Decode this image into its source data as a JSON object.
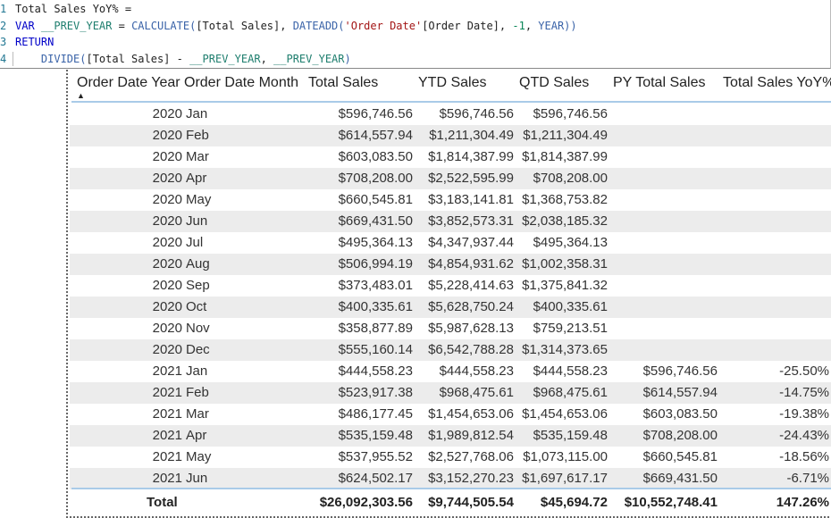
{
  "editor": {
    "lines": [
      {
        "n": "1",
        "parts": [
          [
            "txt",
            "Total Sales YoY% ="
          ]
        ]
      },
      {
        "n": "2",
        "parts": [
          [
            "kw",
            "VAR "
          ],
          [
            "var",
            "__PREV_YEAR"
          ],
          [
            "txt",
            " = "
          ],
          [
            "fn",
            "CALCULATE("
          ],
          [
            "txt",
            "[Total Sales], "
          ],
          [
            "fn",
            "DATEADD("
          ],
          [
            "str",
            "'Order Date'"
          ],
          [
            "txt",
            "[Order Date], "
          ],
          [
            "num",
            "-1"
          ],
          [
            "txt",
            ", "
          ],
          [
            "fn",
            "YEAR))"
          ]
        ]
      },
      {
        "n": "3",
        "parts": [
          [
            "kw",
            "RETURN"
          ]
        ]
      },
      {
        "n": "4",
        "parts": [
          [
            "txt",
            "    "
          ],
          [
            "fn",
            "DIVIDE("
          ],
          [
            "txt",
            "[Total Sales] - "
          ],
          [
            "var",
            "__PREV_YEAR"
          ],
          [
            "txt",
            ", "
          ],
          [
            "var",
            "__PREV_YEAR"
          ],
          [
            "fn",
            ")"
          ]
        ]
      }
    ]
  },
  "table": {
    "headers": [
      "Order Date Year",
      "Order Date Month",
      "Total Sales",
      "YTD Sales",
      "QTD Sales",
      "PY Total Sales",
      "Total Sales YoY%"
    ],
    "sort_indicator": "▲",
    "rows": [
      [
        "2020",
        "Jan",
        "$596,746.56",
        "$596,746.56",
        "$596,746.56",
        "",
        ""
      ],
      [
        "2020",
        "Feb",
        "$614,557.94",
        "$1,211,304.49",
        "$1,211,304.49",
        "",
        ""
      ],
      [
        "2020",
        "Mar",
        "$603,083.50",
        "$1,814,387.99",
        "$1,814,387.99",
        "",
        ""
      ],
      [
        "2020",
        "Apr",
        "$708,208.00",
        "$2,522,595.99",
        "$708,208.00",
        "",
        ""
      ],
      [
        "2020",
        "May",
        "$660,545.81",
        "$3,183,141.81",
        "$1,368,753.82",
        "",
        ""
      ],
      [
        "2020",
        "Jun",
        "$669,431.50",
        "$3,852,573.31",
        "$2,038,185.32",
        "",
        ""
      ],
      [
        "2020",
        "Jul",
        "$495,364.13",
        "$4,347,937.44",
        "$495,364.13",
        "",
        ""
      ],
      [
        "2020",
        "Aug",
        "$506,994.19",
        "$4,854,931.62",
        "$1,002,358.31",
        "",
        ""
      ],
      [
        "2020",
        "Sep",
        "$373,483.01",
        "$5,228,414.63",
        "$1,375,841.32",
        "",
        ""
      ],
      [
        "2020",
        "Oct",
        "$400,335.61",
        "$5,628,750.24",
        "$400,335.61",
        "",
        ""
      ],
      [
        "2020",
        "Nov",
        "$358,877.89",
        "$5,987,628.13",
        "$759,213.51",
        "",
        ""
      ],
      [
        "2020",
        "Dec",
        "$555,160.14",
        "$6,542,788.28",
        "$1,314,373.65",
        "",
        ""
      ],
      [
        "2021",
        "Jan",
        "$444,558.23",
        "$444,558.23",
        "$444,558.23",
        "$596,746.56",
        "-25.50%"
      ],
      [
        "2021",
        "Feb",
        "$523,917.38",
        "$968,475.61",
        "$968,475.61",
        "$614,557.94",
        "-14.75%"
      ],
      [
        "2021",
        "Mar",
        "$486,177.45",
        "$1,454,653.06",
        "$1,454,653.06",
        "$603,083.50",
        "-19.38%"
      ],
      [
        "2021",
        "Apr",
        "$535,159.48",
        "$1,989,812.54",
        "$535,159.48",
        "$708,208.00",
        "-24.43%"
      ],
      [
        "2021",
        "May",
        "$537,955.52",
        "$2,527,768.06",
        "$1,073,115.00",
        "$660,545.81",
        "-18.56%"
      ],
      [
        "2021",
        "Jun",
        "$624,502.17",
        "$3,152,270.23",
        "$1,697,617.17",
        "$669,431.50",
        "-6.71%"
      ]
    ],
    "total": [
      "Total",
      "",
      "$26,092,303.56",
      "$9,744,505.54",
      "$45,694.72",
      "$10,552,748.41",
      "147.26%"
    ]
  }
}
